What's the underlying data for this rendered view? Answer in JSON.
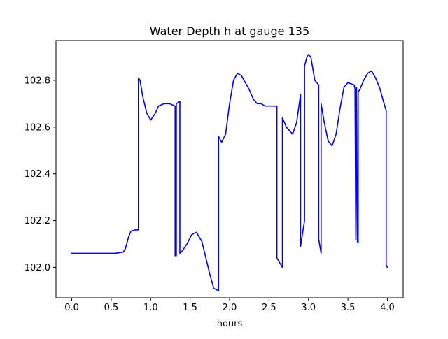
{
  "chart_data": {
    "type": "line",
    "title": "Water Depth h at gauge 135",
    "xlabel": "hours",
    "ylabel": "",
    "xlim": [
      -0.2,
      4.2
    ],
    "ylim": [
      101.87,
      102.97
    ],
    "grid": false,
    "x_ticks": [
      0.0,
      0.5,
      1.0,
      1.5,
      2.0,
      2.5,
      3.0,
      3.5,
      4.0
    ],
    "x_tick_labels": [
      "0.0",
      "0.5",
      "1.0",
      "1.5",
      "2.0",
      "2.5",
      "3.0",
      "3.5",
      "4.0"
    ],
    "y_ticks": [
      102.0,
      102.2,
      102.4,
      102.6,
      102.8
    ],
    "y_tick_labels": [
      "102.0",
      "102.2",
      "102.4",
      "102.6",
      "102.8"
    ],
    "series": [
      {
        "color": "#0000ff",
        "x": [
          0.0,
          0.3,
          0.55,
          0.65,
          0.68,
          0.72,
          0.75,
          0.8,
          0.845,
          0.845,
          0.865,
          0.9,
          0.95,
          1.0,
          1.06,
          1.1,
          1.17,
          1.24,
          1.31,
          1.31,
          1.325,
          1.325,
          1.37,
          1.37,
          1.4,
          1.46,
          1.52,
          1.58,
          1.65,
          1.7,
          1.75,
          1.8,
          1.86,
          1.86,
          1.9,
          1.95,
          2.0,
          2.05,
          2.1,
          2.15,
          2.2,
          2.25,
          2.3,
          2.35,
          2.4,
          2.45,
          2.5,
          2.6,
          2.6,
          2.67,
          2.67,
          2.72,
          2.8,
          2.85,
          2.9,
          2.9,
          2.95,
          2.95,
          2.98,
          3.0,
          3.03,
          3.08,
          3.13,
          3.13,
          3.16,
          3.16,
          3.2,
          3.25,
          3.3,
          3.35,
          3.4,
          3.45,
          3.5,
          3.58,
          3.59,
          3.6,
          3.61,
          3.62,
          3.63,
          3.63,
          3.65,
          3.7,
          3.75,
          3.8,
          3.85,
          3.9,
          3.95,
          3.985,
          3.985,
          4.0
        ],
        "y": [
          102.06,
          102.06,
          102.06,
          102.065,
          102.08,
          102.13,
          102.155,
          102.16,
          102.16,
          102.81,
          102.8,
          102.73,
          102.66,
          102.63,
          102.66,
          102.69,
          102.7,
          102.7,
          102.69,
          102.05,
          102.05,
          102.7,
          102.71,
          102.06,
          102.07,
          102.1,
          102.14,
          102.15,
          102.11,
          102.04,
          101.97,
          101.91,
          101.9,
          102.56,
          102.535,
          102.57,
          102.7,
          102.8,
          102.83,
          102.82,
          102.79,
          102.76,
          102.72,
          102.7,
          102.7,
          102.69,
          102.69,
          102.69,
          102.04,
          102.0,
          102.64,
          102.6,
          102.57,
          102.62,
          102.74,
          102.09,
          102.2,
          102.86,
          102.9,
          102.91,
          102.9,
          102.8,
          102.78,
          102.12,
          102.06,
          102.7,
          102.62,
          102.54,
          102.52,
          102.57,
          102.68,
          102.77,
          102.79,
          102.78,
          102.76,
          102.12,
          102.77,
          102.11,
          102.105,
          102.75,
          102.76,
          102.8,
          102.83,
          102.84,
          102.81,
          102.77,
          102.71,
          102.67,
          102.01,
          102.0
        ]
      }
    ]
  }
}
